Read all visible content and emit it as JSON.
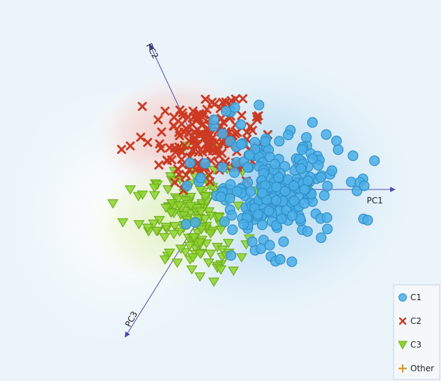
{
  "chart_data": {
    "type": "scatter",
    "title": "",
    "axes": [
      {
        "name": "PC1",
        "direction_deg": 0
      },
      {
        "name": "PC2",
        "direction_deg": 115
      },
      {
        "name": "PC3",
        "direction_deg": 238
      }
    ],
    "xlim": [
      -1.6,
      1.6
    ],
    "ylim": [
      -1.3,
      1.3
    ],
    "legend_position": "bottom-right",
    "series": [
      {
        "name": "C1",
        "marker": "circle",
        "color": "#4aaee6",
        "center": [
          0.32,
          0.01
        ],
        "spread": [
          0.2,
          0.16
        ],
        "count": 230,
        "points": [
          [
            0.05,
            0.45
          ],
          [
            0.1,
            0.47
          ],
          [
            -0.02,
            0.4
          ],
          [
            0.03,
            0.32
          ],
          [
            0.5,
            0.0
          ],
          [
            0.52,
            0.05
          ],
          [
            0.5,
            -0.08
          ],
          [
            0.2,
            -0.3
          ],
          [
            0.25,
            -0.34
          ],
          [
            0.3,
            -0.32
          ],
          [
            0.38,
            -0.3
          ],
          [
            0.15,
            -0.2
          ],
          [
            0.48,
            0.12
          ]
        ]
      },
      {
        "name": "C2",
        "marker": "x",
        "color": "#cc3a23",
        "center": [
          -0.05,
          0.28
        ],
        "spread": [
          0.14,
          0.12
        ],
        "count": 160,
        "points": [
          [
            -0.55,
            0.23
          ],
          [
            -0.5,
            0.25
          ],
          [
            -0.44,
            0.3
          ],
          [
            -0.4,
            0.27
          ],
          [
            -0.34,
            0.4
          ],
          [
            -0.3,
            0.45
          ],
          [
            0.03,
            0.5
          ],
          [
            0.08,
            0.51
          ],
          [
            -0.14,
            0.45
          ],
          [
            -0.06,
            0.46
          ],
          [
            -0.2,
            0.44
          ],
          [
            -0.32,
            0.33
          ]
        ]
      },
      {
        "name": "C3",
        "marker": "triangle",
        "color": "#8ed32f",
        "center": [
          -0.12,
          -0.17
        ],
        "spread": [
          0.13,
          0.14
        ],
        "count": 150,
        "points": [
          [
            -0.6,
            -0.08
          ],
          [
            -0.5,
            0.0
          ],
          [
            -0.43,
            -0.03
          ],
          [
            -0.45,
            -0.2
          ],
          [
            -0.4,
            -0.22
          ],
          [
            -0.2,
            0.23
          ],
          [
            -0.18,
            0.25
          ],
          [
            -0.05,
            -0.42
          ],
          [
            0.0,
            -0.45
          ],
          [
            0.02,
            -0.46
          ],
          [
            -0.02,
            -0.53
          ],
          [
            0.05,
            -0.38
          ],
          [
            -0.1,
            -0.5
          ]
        ]
      },
      {
        "name": "Other",
        "marker": "plus",
        "color": "#d49a2a",
        "count": 0,
        "points": []
      }
    ]
  }
}
